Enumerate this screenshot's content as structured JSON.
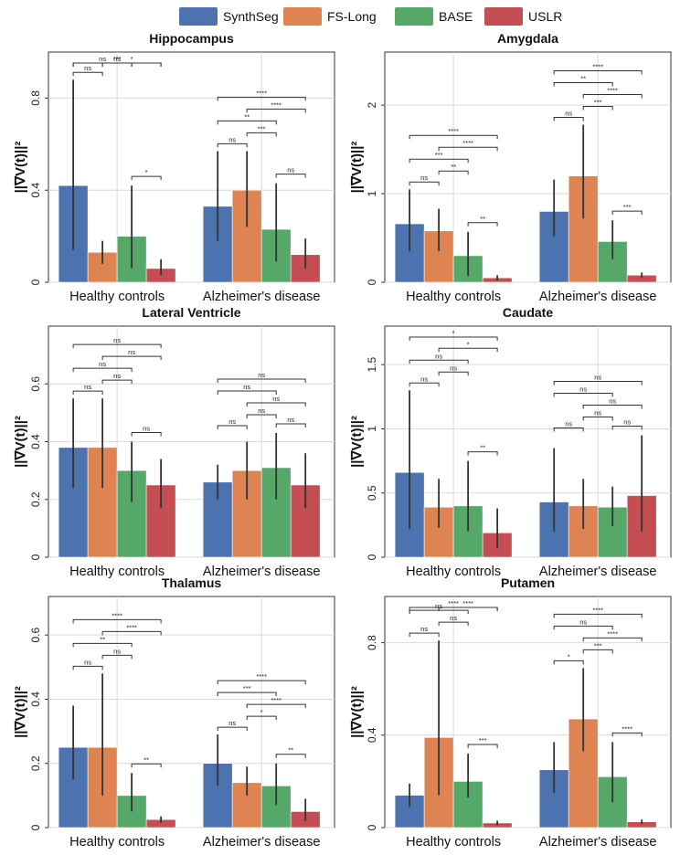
{
  "legend": [
    {
      "name": "SynthSeg",
      "color": "#4c72b0"
    },
    {
      "name": "FS-Long",
      "color": "#dd8452"
    },
    {
      "name": "BASE",
      "color": "#55a868"
    },
    {
      "name": "USLR",
      "color": "#c44e52"
    }
  ],
  "chart_data": [
    {
      "type": "bar",
      "title": "Hippocampus",
      "ylabel": "||∇V(t)||²",
      "categories": [
        "Healthy controls",
        "Alzheimer's disease"
      ],
      "ylim": [
        0,
        1.0
      ],
      "yticks": [
        0,
        0.4,
        0.8
      ],
      "ytick_labels": [
        "0",
        "0.4",
        "0.8"
      ],
      "grid": true,
      "series": [
        {
          "name": "SynthSeg",
          "values": [
            0.42,
            0.33
          ],
          "err_low": [
            0.14,
            0.18
          ],
          "err_high": [
            0.88,
            0.57
          ]
        },
        {
          "name": "FS-Long",
          "values": [
            0.13,
            0.4
          ],
          "err_low": [
            0.08,
            0.24
          ],
          "err_high": [
            0.18,
            0.57
          ]
        },
        {
          "name": "BASE",
          "values": [
            0.2,
            0.23
          ],
          "err_low": [
            0.06,
            0.09
          ],
          "err_high": [
            0.42,
            0.43
          ]
        },
        {
          "name": "USLR",
          "values": [
            0.06,
            0.12
          ],
          "err_low": [
            0.03,
            0.06
          ],
          "err_high": [
            0.1,
            0.19
          ]
        }
      ],
      "annotations": [
        [
          {
            "a": 0,
            "b": 1,
            "label": "ns",
            "lvl": 1
          },
          {
            "a": 2,
            "b": 3,
            "label": "*",
            "lvl": 1
          },
          {
            "a": 1,
            "b": 2,
            "label": "ns",
            "lvl": 2
          },
          {
            "a": 0,
            "b": 2,
            "label": "ns",
            "lvl": 3
          },
          {
            "a": 1,
            "b": 3,
            "label": "*",
            "lvl": 4
          },
          {
            "a": 0,
            "b": 3,
            "label": "***",
            "lvl": 5
          }
        ],
        [
          {
            "a": 0,
            "b": 1,
            "label": "ns",
            "lvl": 1
          },
          {
            "a": 2,
            "b": 3,
            "label": "ns",
            "lvl": 1
          },
          {
            "a": 1,
            "b": 2,
            "label": "***",
            "lvl": 2
          },
          {
            "a": 0,
            "b": 2,
            "label": "**",
            "lvl": 3
          },
          {
            "a": 1,
            "b": 3,
            "label": "****",
            "lvl": 4
          },
          {
            "a": 0,
            "b": 3,
            "label": "****",
            "lvl": 5
          }
        ]
      ]
    },
    {
      "type": "bar",
      "title": "Amygdala",
      "ylabel": "||∇V(t)||²",
      "categories": [
        "Healthy controls",
        "Alzheimer's disease"
      ],
      "ylim": [
        0,
        2.6
      ],
      "yticks": [
        0,
        1,
        2
      ],
      "ytick_labels": [
        "0",
        "1",
        "2"
      ],
      "grid": true,
      "series": [
        {
          "name": "SynthSeg",
          "values": [
            0.66,
            0.8
          ],
          "err_low": [
            0.35,
            0.52
          ],
          "err_high": [
            1.05,
            1.16
          ]
        },
        {
          "name": "FS-Long",
          "values": [
            0.58,
            1.2
          ],
          "err_low": [
            0.35,
            0.72
          ],
          "err_high": [
            0.83,
            1.78
          ]
        },
        {
          "name": "BASE",
          "values": [
            0.3,
            0.46
          ],
          "err_low": [
            0.07,
            0.26
          ],
          "err_high": [
            0.57,
            0.7
          ]
        },
        {
          "name": "USLR",
          "values": [
            0.05,
            0.08
          ],
          "err_low": [
            0.02,
            0.05
          ],
          "err_high": [
            0.08,
            0.11
          ]
        }
      ],
      "annotations": [
        [
          {
            "a": 0,
            "b": 1,
            "label": "ns",
            "lvl": 1
          },
          {
            "a": 2,
            "b": 3,
            "label": "**",
            "lvl": 1
          },
          {
            "a": 1,
            "b": 2,
            "label": "**",
            "lvl": 2
          },
          {
            "a": 0,
            "b": 2,
            "label": "***",
            "lvl": 3
          },
          {
            "a": 1,
            "b": 3,
            "label": "****",
            "lvl": 4
          },
          {
            "a": 0,
            "b": 3,
            "label": "****",
            "lvl": 5
          }
        ],
        [
          {
            "a": 0,
            "b": 1,
            "label": "ns",
            "lvl": 1
          },
          {
            "a": 2,
            "b": 3,
            "label": "***",
            "lvl": 1
          },
          {
            "a": 1,
            "b": 2,
            "label": "***",
            "lvl": 2
          },
          {
            "a": 1,
            "b": 3,
            "label": "****",
            "lvl": 3
          },
          {
            "a": 0,
            "b": 2,
            "label": "**",
            "lvl": 4
          },
          {
            "a": 0,
            "b": 3,
            "label": "****",
            "lvl": 5
          }
        ]
      ]
    },
    {
      "type": "bar",
      "title": "Lateral Ventricle",
      "ylabel": "||∇V(t)||²",
      "categories": [
        "Healthy controls",
        "Alzheimer's disease"
      ],
      "ylim": [
        0,
        0.8
      ],
      "yticks": [
        0,
        0.2,
        0.4,
        0.6
      ],
      "ytick_labels": [
        "0",
        "0.2",
        "0.4",
        "0.6"
      ],
      "grid": true,
      "series": [
        {
          "name": "SynthSeg",
          "values": [
            0.38,
            0.26
          ],
          "err_low": [
            0.24,
            0.2
          ],
          "err_high": [
            0.55,
            0.32
          ]
        },
        {
          "name": "FS-Long",
          "values": [
            0.38,
            0.3
          ],
          "err_low": [
            0.24,
            0.2
          ],
          "err_high": [
            0.55,
            0.4
          ]
        },
        {
          "name": "BASE",
          "values": [
            0.3,
            0.31
          ],
          "err_low": [
            0.19,
            0.2
          ],
          "err_high": [
            0.4,
            0.43
          ]
        },
        {
          "name": "USLR",
          "values": [
            0.25,
            0.25
          ],
          "err_low": [
            0.17,
            0.17
          ],
          "err_high": [
            0.34,
            0.36
          ]
        }
      ],
      "annotations": [
        [
          {
            "a": 0,
            "b": 1,
            "label": "ns",
            "lvl": 1
          },
          {
            "a": 2,
            "b": 3,
            "label": "ns",
            "lvl": 1
          },
          {
            "a": 1,
            "b": 2,
            "label": "ns",
            "lvl": 2
          },
          {
            "a": 0,
            "b": 2,
            "label": "ns",
            "lvl": 3
          },
          {
            "a": 1,
            "b": 3,
            "label": "ns",
            "lvl": 4
          },
          {
            "a": 0,
            "b": 3,
            "label": "ns",
            "lvl": 5
          }
        ],
        [
          {
            "a": 0,
            "b": 1,
            "label": "ns",
            "lvl": 1
          },
          {
            "a": 2,
            "b": 3,
            "label": "ns",
            "lvl": 1
          },
          {
            "a": 1,
            "b": 2,
            "label": "ns",
            "lvl": 2
          },
          {
            "a": 1,
            "b": 3,
            "label": "ns",
            "lvl": 3
          },
          {
            "a": 0,
            "b": 2,
            "label": "ns",
            "lvl": 4
          },
          {
            "a": 0,
            "b": 3,
            "label": "ns",
            "lvl": 5
          }
        ]
      ]
    },
    {
      "type": "bar",
      "title": "Caudate",
      "ylabel": "||∇V(t)||²",
      "categories": [
        "Healthy controls",
        "Alzheimer's disease"
      ],
      "ylim": [
        0,
        1.8
      ],
      "yticks": [
        0,
        0.5,
        1,
        1.5
      ],
      "ytick_labels": [
        "0",
        "0.5",
        "1",
        "1.5"
      ],
      "grid": true,
      "series": [
        {
          "name": "SynthSeg",
          "values": [
            0.66,
            0.43
          ],
          "err_low": [
            0.22,
            0.2
          ],
          "err_high": [
            1.3,
            0.85
          ]
        },
        {
          "name": "FS-Long",
          "values": [
            0.39,
            0.4
          ],
          "err_low": [
            0.23,
            0.22
          ],
          "err_high": [
            0.61,
            0.61
          ]
        },
        {
          "name": "BASE",
          "values": [
            0.4,
            0.39
          ],
          "err_low": [
            0.2,
            0.24
          ],
          "err_high": [
            0.75,
            0.55
          ]
        },
        {
          "name": "USLR",
          "values": [
            0.19,
            0.48
          ],
          "err_low": [
            0.07,
            0.2
          ],
          "err_high": [
            0.38,
            0.95
          ]
        }
      ],
      "annotations": [
        [
          {
            "a": 0,
            "b": 1,
            "label": "ns",
            "lvl": 1
          },
          {
            "a": 2,
            "b": 3,
            "label": "**",
            "lvl": 1
          },
          {
            "a": 1,
            "b": 2,
            "label": "ns",
            "lvl": 2
          },
          {
            "a": 0,
            "b": 2,
            "label": "ns",
            "lvl": 3
          },
          {
            "a": 1,
            "b": 3,
            "label": "*",
            "lvl": 4
          },
          {
            "a": 0,
            "b": 3,
            "label": "*",
            "lvl": 5
          }
        ],
        [
          {
            "a": 0,
            "b": 1,
            "label": "ns",
            "lvl": 1
          },
          {
            "a": 2,
            "b": 3,
            "label": "ns",
            "lvl": 1
          },
          {
            "a": 1,
            "b": 2,
            "label": "ns",
            "lvl": 2
          },
          {
            "a": 1,
            "b": 3,
            "label": "ns",
            "lvl": 3
          },
          {
            "a": 0,
            "b": 2,
            "label": "ns",
            "lvl": 4
          },
          {
            "a": 0,
            "b": 3,
            "label": "ns",
            "lvl": 5
          }
        ]
      ]
    },
    {
      "type": "bar",
      "title": "Thalamus",
      "ylabel": "||∇V(t)||²",
      "categories": [
        "Healthy controls",
        "Alzheimer's disease"
      ],
      "ylim": [
        0,
        0.72
      ],
      "yticks": [
        0,
        0.2,
        0.4,
        0.6
      ],
      "ytick_labels": [
        "0",
        "0.2",
        "0.4",
        "0.6"
      ],
      "grid": true,
      "series": [
        {
          "name": "SynthSeg",
          "values": [
            0.25,
            0.2
          ],
          "err_low": [
            0.15,
            0.13
          ],
          "err_high": [
            0.38,
            0.29
          ]
        },
        {
          "name": "FS-Long",
          "values": [
            0.25,
            0.14
          ],
          "err_low": [
            0.1,
            0.1
          ],
          "err_high": [
            0.48,
            0.19
          ]
        },
        {
          "name": "BASE",
          "values": [
            0.1,
            0.13
          ],
          "err_low": [
            0.05,
            0.07
          ],
          "err_high": [
            0.17,
            0.2
          ]
        },
        {
          "name": "USLR",
          "values": [
            0.025,
            0.05
          ],
          "err_low": [
            0.015,
            0.02
          ],
          "err_high": [
            0.035,
            0.09
          ]
        }
      ],
      "annotations": [
        [
          {
            "a": 0,
            "b": 1,
            "label": "ns",
            "lvl": 1
          },
          {
            "a": 2,
            "b": 3,
            "label": "**",
            "lvl": 1
          },
          {
            "a": 1,
            "b": 2,
            "label": "ns",
            "lvl": 2
          },
          {
            "a": 0,
            "b": 2,
            "label": "**",
            "lvl": 3
          },
          {
            "a": 1,
            "b": 3,
            "label": "****",
            "lvl": 4
          },
          {
            "a": 0,
            "b": 3,
            "label": "****",
            "lvl": 5
          }
        ],
        [
          {
            "a": 0,
            "b": 1,
            "label": "ns",
            "lvl": 1
          },
          {
            "a": 2,
            "b": 3,
            "label": "**",
            "lvl": 1
          },
          {
            "a": 1,
            "b": 2,
            "label": "*",
            "lvl": 2
          },
          {
            "a": 1,
            "b": 3,
            "label": "****",
            "lvl": 3
          },
          {
            "a": 0,
            "b": 2,
            "label": "***",
            "lvl": 4
          },
          {
            "a": 0,
            "b": 3,
            "label": "****",
            "lvl": 5
          }
        ]
      ]
    },
    {
      "type": "bar",
      "title": "Putamen",
      "ylabel": "||∇V(t)||²",
      "categories": [
        "Healthy controls",
        "Alzheimer's disease"
      ],
      "ylim": [
        0,
        1.0
      ],
      "yticks": [
        0,
        0.4,
        0.8
      ],
      "ytick_labels": [
        "0",
        "0.4",
        "0.8"
      ],
      "grid": true,
      "series": [
        {
          "name": "SynthSeg",
          "values": [
            0.14,
            0.25
          ],
          "err_low": [
            0.09,
            0.15
          ],
          "err_high": [
            0.19,
            0.37
          ]
        },
        {
          "name": "FS-Long",
          "values": [
            0.39,
            0.47
          ],
          "err_low": [
            0.14,
            0.33
          ],
          "err_high": [
            0.81,
            0.69
          ]
        },
        {
          "name": "BASE",
          "values": [
            0.2,
            0.22
          ],
          "err_low": [
            0.13,
            0.11
          ],
          "err_high": [
            0.32,
            0.37
          ]
        },
        {
          "name": "USLR",
          "values": [
            0.02,
            0.025
          ],
          "err_low": [
            0.01,
            0.015
          ],
          "err_high": [
            0.03,
            0.035
          ]
        }
      ],
      "annotations": [
        [
          {
            "a": 0,
            "b": 1,
            "label": "ns",
            "lvl": 1
          },
          {
            "a": 2,
            "b": 3,
            "label": "***",
            "lvl": 1
          },
          {
            "a": 1,
            "b": 2,
            "label": "ns",
            "lvl": 2
          },
          {
            "a": 0,
            "b": 2,
            "label": "ns",
            "lvl": 3
          },
          {
            "a": 1,
            "b": 3,
            "label": "****",
            "lvl": 4
          },
          {
            "a": 0,
            "b": 3,
            "label": "****",
            "lvl": 5
          }
        ],
        [
          {
            "a": 0,
            "b": 1,
            "label": "*",
            "lvl": 1
          },
          {
            "a": 2,
            "b": 3,
            "label": "****",
            "lvl": 1
          },
          {
            "a": 1,
            "b": 2,
            "label": "***",
            "lvl": 2
          },
          {
            "a": 1,
            "b": 3,
            "label": "****",
            "lvl": 3
          },
          {
            "a": 0,
            "b": 2,
            "label": "ns",
            "lvl": 4
          },
          {
            "a": 0,
            "b": 3,
            "label": "****",
            "lvl": 5
          }
        ]
      ]
    }
  ]
}
